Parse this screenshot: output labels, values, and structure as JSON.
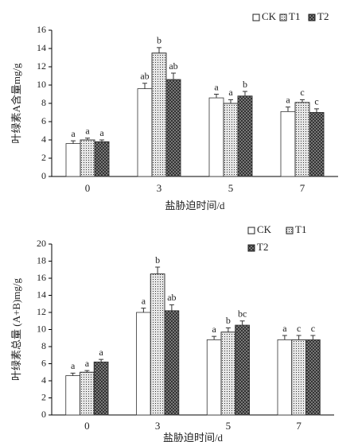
{
  "chart_data": [
    {
      "type": "bar",
      "ylabel": "叶绿素A含量mg/g",
      "xlabel": "盐胁迫时间/d",
      "categories": [
        "0",
        "3",
        "5",
        "7"
      ],
      "series": [
        {
          "name": "CK",
          "color": "#ffffff",
          "values": [
            3.6,
            9.6,
            8.6,
            7.1
          ],
          "errors": [
            0.3,
            0.6,
            0.4,
            0.5
          ],
          "letters": [
            "a",
            "ab",
            "a",
            "a"
          ]
        },
        {
          "name": "T1",
          "color": "#e6e6e6",
          "values": [
            4.0,
            13.5,
            8.0,
            8.1
          ],
          "errors": [
            0.2,
            0.6,
            0.4,
            0.3
          ],
          "letters": [
            "a",
            "b",
            "a",
            "c"
          ]
        },
        {
          "name": "T2",
          "color": "#8a8a8a",
          "values": [
            3.8,
            10.6,
            8.8,
            7.0
          ],
          "errors": [
            0.2,
            0.7,
            0.5,
            0.4
          ],
          "letters": [
            "a",
            "ab",
            "b",
            "c"
          ]
        }
      ],
      "ylim": [
        0,
        16
      ],
      "yticks": [
        0,
        2,
        4,
        6,
        8,
        10,
        12,
        14,
        16
      ],
      "legend": "top-right"
    },
    {
      "type": "bar",
      "ylabel": "叶绿素总量 (A+B)mg/g",
      "xlabel": "盐胁迫时间/d",
      "categories": [
        "0",
        "3",
        "5",
        "7"
      ],
      "series": [
        {
          "name": "CK",
          "color": "#ffffff",
          "values": [
            4.6,
            12.0,
            8.8,
            8.8
          ],
          "errors": [
            0.3,
            0.5,
            0.4,
            0.5
          ],
          "letters": [
            "a",
            "a",
            "a",
            "a"
          ]
        },
        {
          "name": "T1",
          "color": "#e6e6e6",
          "values": [
            5.0,
            16.5,
            9.7,
            8.8
          ],
          "errors": [
            0.2,
            0.8,
            0.5,
            0.5
          ],
          "letters": [
            "a",
            "b",
            "b",
            "c"
          ]
        },
        {
          "name": "T2",
          "color": "#8a8a8a",
          "values": [
            6.2,
            12.2,
            10.5,
            8.8
          ],
          "errors": [
            0.3,
            0.7,
            0.5,
            0.5
          ],
          "letters": [
            "a",
            "ab",
            "bc",
            "c"
          ]
        }
      ],
      "ylim": [
        0,
        20
      ],
      "yticks": [
        0,
        2,
        4,
        6,
        8,
        10,
        12,
        14,
        16,
        18,
        20
      ],
      "legend": "top-right"
    }
  ]
}
